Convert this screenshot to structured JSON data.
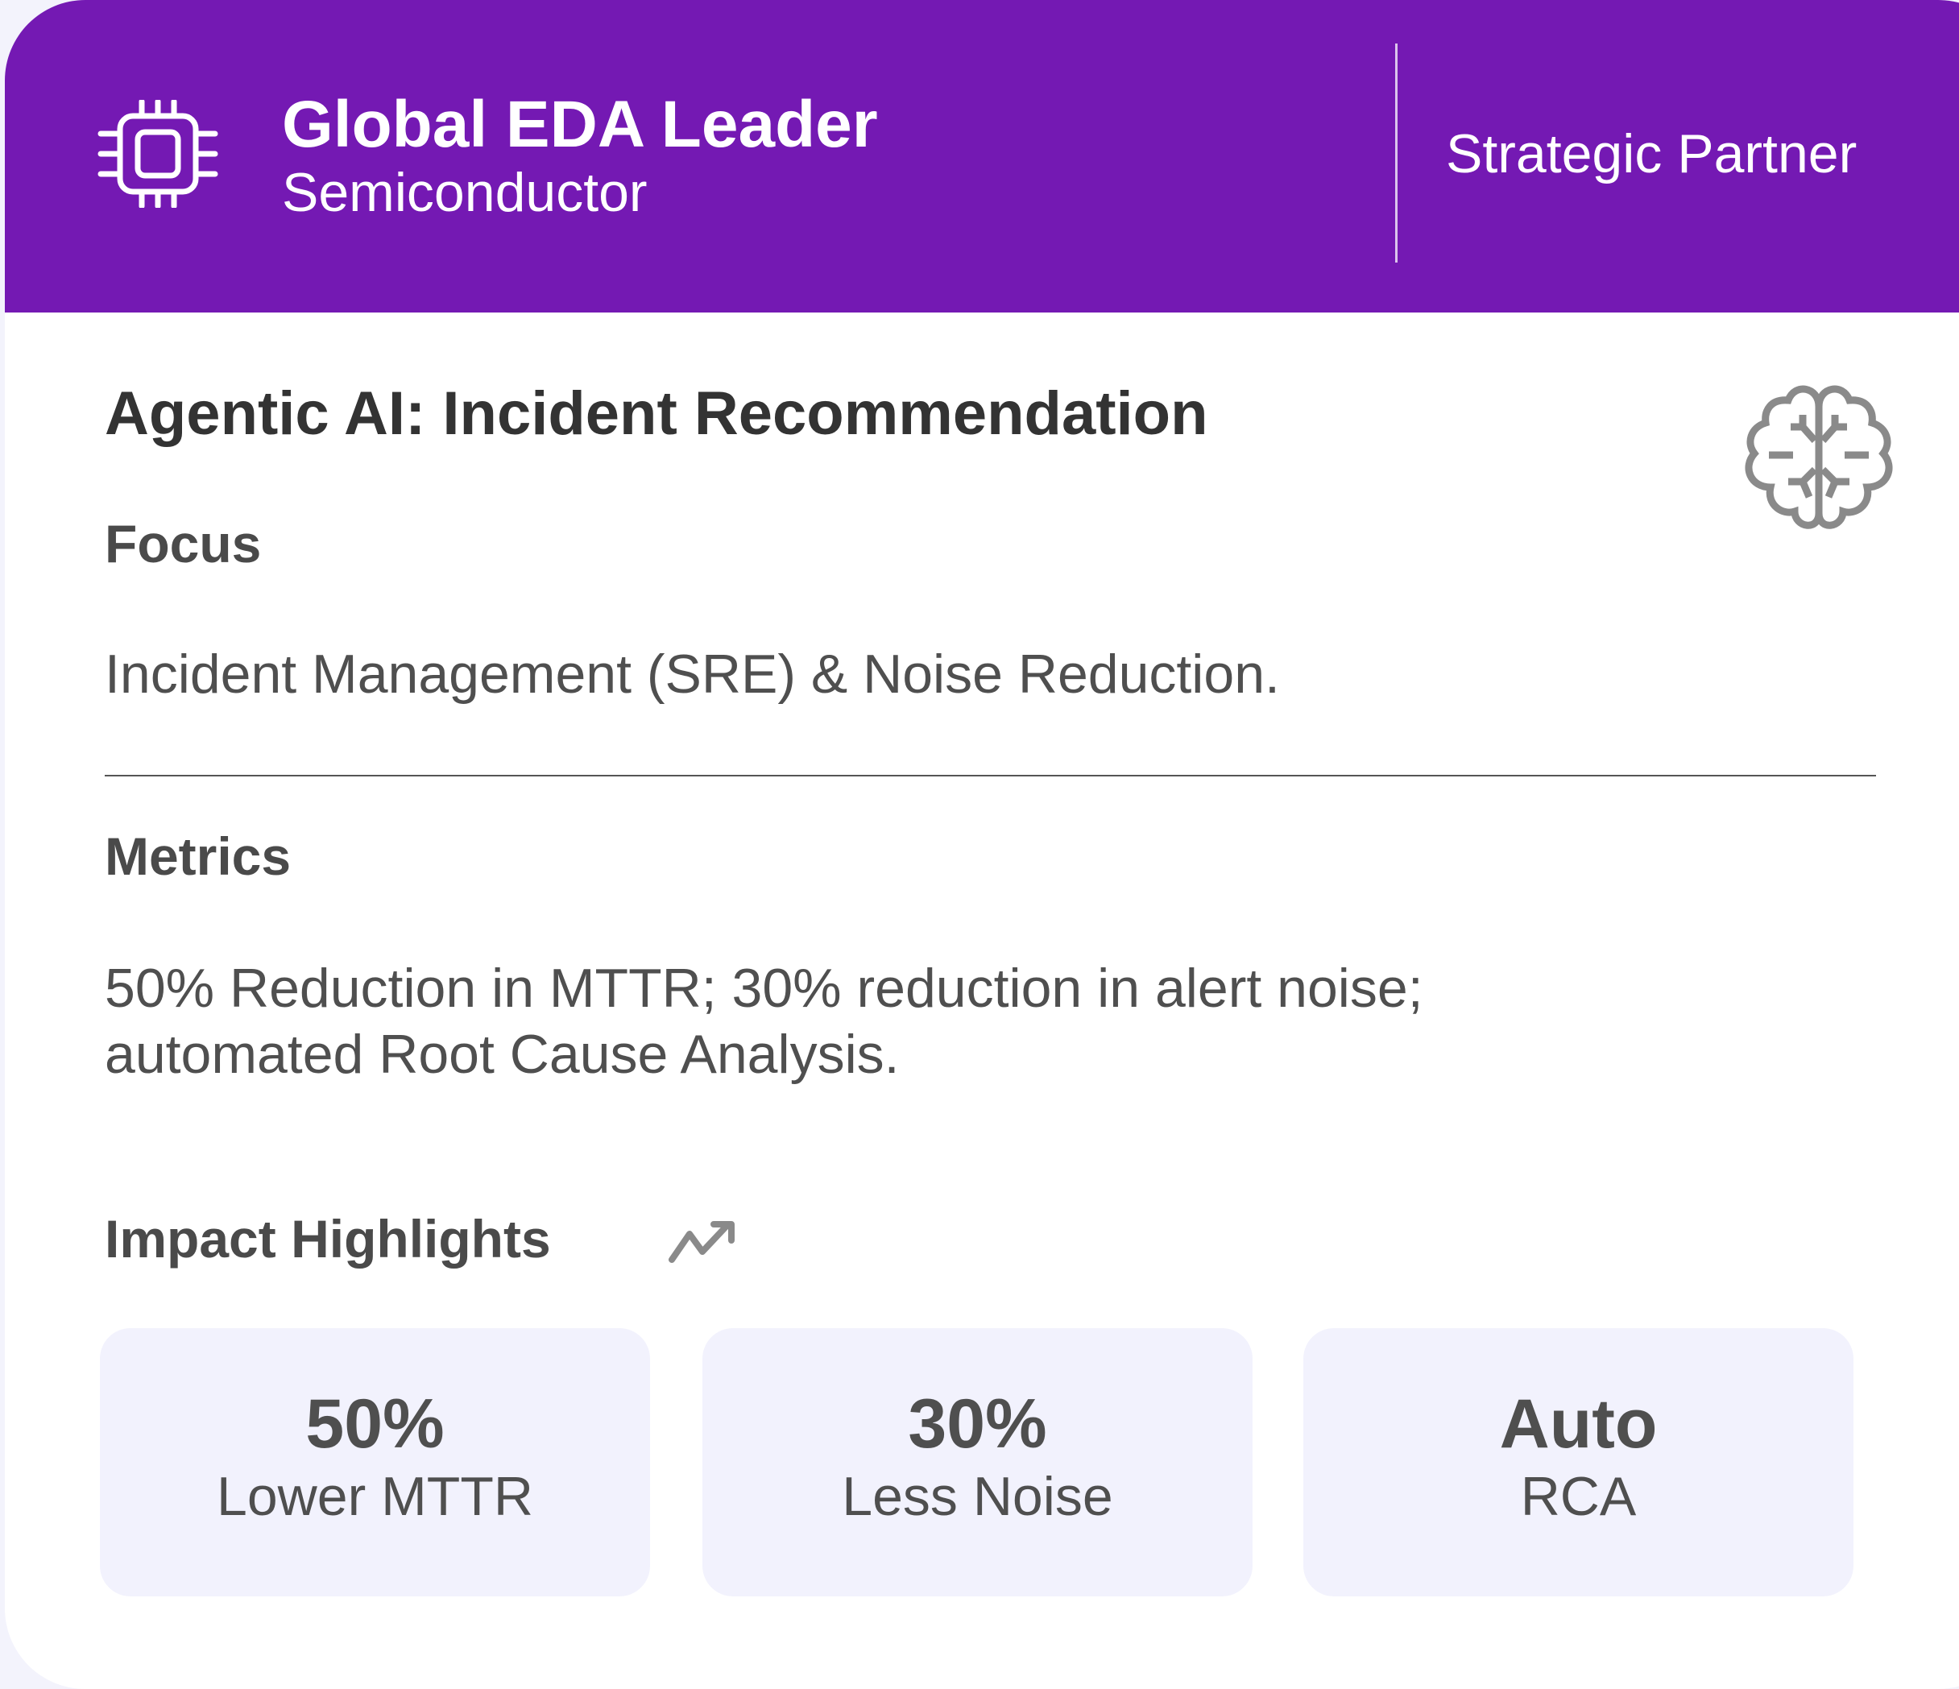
{
  "header": {
    "icon": "chip-icon",
    "company": "Global EDA Leader",
    "industry": "Semiconductor",
    "relationship": "Strategic Partner",
    "accent_color": "#7419b3"
  },
  "main": {
    "title": "Agentic AI: Incident Recommendation",
    "title_icon": "brain-icon",
    "focus": {
      "label": "Focus",
      "text": "Incident Management (SRE) & Noise Reduction."
    },
    "metrics": {
      "label": "Metrics",
      "lines": [
        "50% Reduction in MTTR; 30% reduction in alert noise;",
        "automated Root Cause Analysis."
      ]
    },
    "impact": {
      "label": "Impact Highlights",
      "icon": "trending-up-icon",
      "cards": [
        {
          "value": "50%",
          "label": "Lower MTTR"
        },
        {
          "value": "30%",
          "label": "Less Noise"
        },
        {
          "value": "Auto",
          "label": "RCA"
        }
      ]
    }
  }
}
